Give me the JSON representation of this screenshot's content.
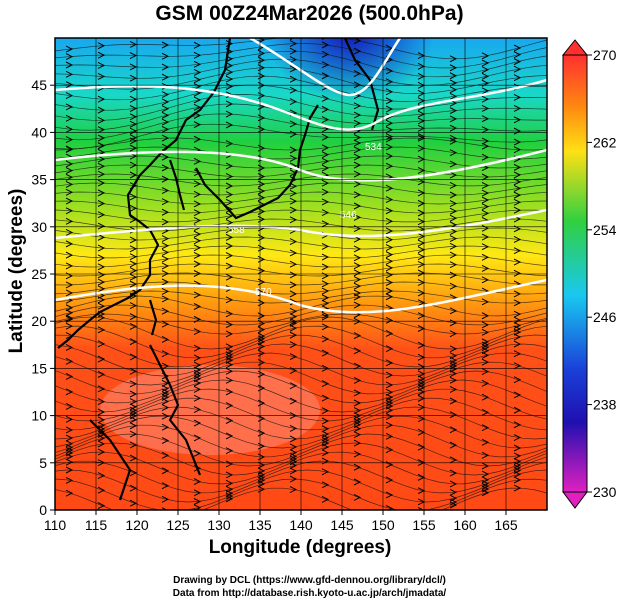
{
  "title": "GSM 00Z24Mar2026 (500.0hPa)",
  "x_axis": {
    "label": "Longitude (degrees)",
    "ticks": [
      "110",
      "115",
      "120",
      "125",
      "130",
      "135",
      "140",
      "145",
      "150",
      "155",
      "160",
      "165"
    ],
    "range": [
      110,
      170
    ]
  },
  "y_axis": {
    "label": "Latitude (degrees)",
    "ticks": [
      "0",
      "5",
      "10",
      "15",
      "20",
      "25",
      "30",
      "35",
      "40",
      "45"
    ],
    "range": [
      0,
      50
    ]
  },
  "colorbar": {
    "ticks": [
      "270",
      "262",
      "254",
      "246",
      "238",
      "230"
    ],
    "min": 230,
    "max": 270
  },
  "contours": [
    {
      "value": "570",
      "label": "570"
    },
    {
      "value": "558",
      "label": "558"
    },
    {
      "value": "546",
      "label": "546"
    },
    {
      "value": "534",
      "label": "534"
    }
  ],
  "credits": [
    "Drawing by DCL (https://www.gfd-dennou.org/library/dcl/)",
    "Data from http://database.rish.kyoto-u.ac.jp/arch/jmadata/"
  ],
  "colors": {
    "warm": "#ff4a1a",
    "mid": "#ffe014",
    "green": "#1ed21e",
    "cyan": "#19c8f0",
    "cold": "#1a2acc"
  }
}
